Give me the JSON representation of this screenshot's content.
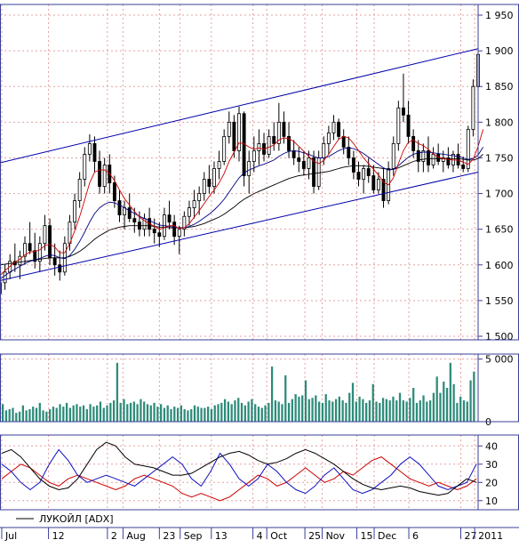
{
  "chart_data": {
    "type": "candlestick",
    "instrument_legend": "ЛУКОЙЛ [ADX]",
    "colors": {
      "background": "#ffffff",
      "grid": "#e4a0a0",
      "frame": "#3a3f9a",
      "candle": "#000000",
      "ma_fast": "#cc0000",
      "ma_mid": "#000080",
      "ma_slow": "#000000",
      "channel": "#0000aa",
      "volume_bar": "#2e8b7a",
      "adx": "#000000",
      "di_plus": "#1010c0",
      "di_minus": "#cc0000"
    },
    "x_axis": {
      "labels": [
        "Jul",
        "12",
        "2",
        "Aug",
        "23",
        "Sep",
        "13",
        "4",
        "Oct",
        "25",
        "Nov",
        "15",
        "Dec",
        "6",
        "27",
        "2011"
      ],
      "label_positions": [
        0.5,
        14,
        31,
        35.5,
        46,
        52,
        61,
        73,
        77,
        88,
        93,
        103,
        108,
        118,
        133,
        137
      ]
    },
    "price_panel": {
      "ylim": [
        1495,
        1965
      ],
      "yticks": [
        1500,
        1550,
        1600,
        1650,
        1700,
        1750,
        1800,
        1850,
        1900,
        1950
      ],
      "ytick_labels": [
        "1 500",
        "1 550",
        "1 600",
        "1 650",
        "1 700",
        "1 750",
        "1 800",
        "1 850",
        "1 900",
        "1 950"
      ],
      "channel_upper": [
        [
          0,
          1743
        ],
        [
          138,
          1903
        ]
      ],
      "channel_lower": [
        [
          0,
          1578
        ],
        [
          138,
          1730
        ]
      ],
      "candles": [
        [
          1560,
          1590,
          1550,
          1575
        ],
        [
          1575,
          1600,
          1565,
          1590
        ],
        [
          1590,
          1615,
          1580,
          1605
        ],
        [
          1605,
          1630,
          1590,
          1600
        ],
        [
          1600,
          1620,
          1580,
          1612
        ],
        [
          1612,
          1640,
          1600,
          1630
        ],
        [
          1630,
          1660,
          1615,
          1620
        ],
        [
          1620,
          1645,
          1595,
          1605
        ],
        [
          1605,
          1640,
          1590,
          1630
        ],
        [
          1630,
          1670,
          1620,
          1655
        ],
        [
          1655,
          1665,
          1600,
          1610
        ],
        [
          1610,
          1630,
          1585,
          1600
        ],
        [
          1600,
          1620,
          1578,
          1590
        ],
        [
          1590,
          1640,
          1585,
          1630
        ],
        [
          1630,
          1670,
          1620,
          1660
        ],
        [
          1660,
          1700,
          1650,
          1690
        ],
        [
          1690,
          1730,
          1680,
          1720
        ],
        [
          1720,
          1765,
          1710,
          1755
        ],
        [
          1755,
          1783,
          1745,
          1770
        ],
        [
          1770,
          1780,
          1730,
          1745
        ],
        [
          1745,
          1760,
          1700,
          1710
        ],
        [
          1710,
          1750,
          1700,
          1740
        ],
        [
          1740,
          1755,
          1700,
          1715
        ],
        [
          1715,
          1725,
          1680,
          1690
        ],
        [
          1690,
          1705,
          1660,
          1670
        ],
        [
          1670,
          1690,
          1650,
          1680
        ],
        [
          1680,
          1700,
          1660,
          1665
        ],
        [
          1665,
          1680,
          1645,
          1660
        ],
        [
          1660,
          1675,
          1640,
          1650
        ],
        [
          1650,
          1672,
          1640,
          1665
        ],
        [
          1665,
          1680,
          1640,
          1650
        ],
        [
          1650,
          1665,
          1630,
          1645
        ],
        [
          1645,
          1660,
          1625,
          1640
        ],
        [
          1640,
          1680,
          1635,
          1670
        ],
        [
          1670,
          1690,
          1650,
          1660
        ],
        [
          1660,
          1670,
          1628,
          1640
        ],
        [
          1640,
          1655,
          1615,
          1650
        ],
        [
          1650,
          1675,
          1640,
          1668
        ],
        [
          1668,
          1690,
          1655,
          1680
        ],
        [
          1680,
          1705,
          1665,
          1690
        ],
        [
          1690,
          1710,
          1670,
          1700
        ],
        [
          1700,
          1730,
          1690,
          1720
        ],
        [
          1720,
          1740,
          1700,
          1710
        ],
        [
          1710,
          1745,
          1700,
          1735
        ],
        [
          1735,
          1760,
          1720,
          1745
        ],
        [
          1745,
          1790,
          1740,
          1780
        ],
        [
          1780,
          1815,
          1770,
          1800
        ],
        [
          1800,
          1810,
          1750,
          1760
        ],
        [
          1760,
          1822,
          1745,
          1812
        ],
        [
          1812,
          1815,
          1710,
          1725
        ],
        [
          1725,
          1760,
          1700,
          1745
        ],
        [
          1745,
          1780,
          1730,
          1760
        ],
        [
          1760,
          1790,
          1740,
          1770
        ],
        [
          1770,
          1785,
          1745,
          1755
        ],
        [
          1755,
          1790,
          1750,
          1780
        ],
        [
          1780,
          1800,
          1760,
          1770
        ],
        [
          1770,
          1827,
          1760,
          1800
        ],
        [
          1800,
          1815,
          1770,
          1780
        ],
        [
          1780,
          1800,
          1750,
          1760
        ],
        [
          1760,
          1775,
          1740,
          1750
        ],
        [
          1750,
          1765,
          1730,
          1745
        ],
        [
          1745,
          1760,
          1725,
          1735
        ],
        [
          1735,
          1760,
          1720,
          1750
        ],
        [
          1750,
          1760,
          1700,
          1710
        ],
        [
          1710,
          1760,
          1705,
          1750
        ],
        [
          1750,
          1780,
          1740,
          1770
        ],
        [
          1770,
          1795,
          1755,
          1785
        ],
        [
          1785,
          1810,
          1775,
          1800
        ],
        [
          1800,
          1805,
          1775,
          1780
        ],
        [
          1780,
          1790,
          1755,
          1765
        ],
        [
          1765,
          1780,
          1740,
          1750
        ],
        [
          1750,
          1760,
          1720,
          1730
        ],
        [
          1730,
          1745,
          1710,
          1720
        ],
        [
          1720,
          1740,
          1700,
          1735
        ],
        [
          1735,
          1750,
          1715,
          1725
        ],
        [
          1725,
          1740,
          1700,
          1705
        ],
        [
          1705,
          1730,
          1700,
          1720
        ],
        [
          1720,
          1735,
          1680,
          1690
        ],
        [
          1690,
          1745,
          1685,
          1735
        ],
        [
          1735,
          1780,
          1725,
          1770
        ],
        [
          1770,
          1830,
          1760,
          1820
        ],
        [
          1820,
          1868,
          1800,
          1810
        ],
        [
          1810,
          1830,
          1770,
          1780
        ],
        [
          1780,
          1790,
          1750,
          1760
        ],
        [
          1760,
          1775,
          1730,
          1745
        ],
        [
          1745,
          1770,
          1730,
          1760
        ],
        [
          1760,
          1780,
          1730,
          1740
        ],
        [
          1740,
          1765,
          1735,
          1755
        ],
        [
          1755,
          1770,
          1740,
          1745
        ],
        [
          1745,
          1760,
          1730,
          1750
        ],
        [
          1750,
          1765,
          1735,
          1740
        ],
        [
          1740,
          1760,
          1730,
          1755
        ],
        [
          1755,
          1770,
          1735,
          1740
        ],
        [
          1740,
          1752,
          1730,
          1735
        ],
        [
          1735,
          1795,
          1730,
          1790
        ],
        [
          1790,
          1860,
          1780,
          1850
        ],
        [
          1850,
          1915,
          1840,
          1895
        ]
      ],
      "ma_fast": [
        1585,
        1592,
        1598,
        1604,
        1608,
        1614,
        1618,
        1619,
        1621,
        1627,
        1629,
        1625,
        1617,
        1617,
        1630,
        1648,
        1668,
        1691,
        1715,
        1730,
        1733,
        1733,
        1728,
        1718,
        1705,
        1693,
        1684,
        1675,
        1667,
        1662,
        1658,
        1654,
        1650,
        1652,
        1655,
        1655,
        1651,
        1652,
        1658,
        1667,
        1676,
        1686,
        1696,
        1705,
        1715,
        1728,
        1745,
        1758,
        1771,
        1770,
        1765,
        1762,
        1764,
        1762,
        1765,
        1768,
        1775,
        1778,
        1777,
        1773,
        1766,
        1759,
        1752,
        1745,
        1742,
        1746,
        1755,
        1766,
        1776,
        1780,
        1778,
        1770,
        1760,
        1750,
        1742,
        1734,
        1726,
        1716,
        1712,
        1722,
        1742,
        1760,
        1772,
        1775,
        1770,
        1767,
        1762,
        1755,
        1751,
        1749,
        1748,
        1747,
        1747,
        1744,
        1741,
        1748,
        1766,
        1790
      ],
      "ma_mid": [
        1580,
        1585,
        1590,
        1594,
        1598,
        1602,
        1605,
        1607,
        1609,
        1612,
        1614,
        1613,
        1610,
        1609,
        1613,
        1622,
        1633,
        1646,
        1660,
        1672,
        1680,
        1685,
        1688,
        1687,
        1684,
        1680,
        1676,
        1672,
        1668,
        1665,
        1662,
        1659,
        1656,
        1655,
        1654,
        1653,
        1652,
        1652,
        1654,
        1657,
        1661,
        1666,
        1671,
        1677,
        1684,
        1692,
        1702,
        1712,
        1722,
        1729,
        1733,
        1736,
        1739,
        1741,
        1744,
        1747,
        1752,
        1756,
        1759,
        1760,
        1759,
        1757,
        1755,
        1752,
        1750,
        1750,
        1752,
        1756,
        1760,
        1763,
        1764,
        1763,
        1760,
        1756,
        1751,
        1746,
        1741,
        1736,
        1733,
        1734,
        1739,
        1745,
        1751,
        1755,
        1757,
        1758,
        1758,
        1757,
        1756,
        1755,
        1754,
        1753,
        1752,
        1750,
        1748,
        1749,
        1754,
        1765
      ],
      "ma_slow": [
        1600,
        1601,
        1602,
        1603,
        1604,
        1605,
        1606,
        1607,
        1608,
        1609,
        1610,
        1610,
        1610,
        1610,
        1612,
        1615,
        1619,
        1624,
        1630,
        1636,
        1641,
        1645,
        1649,
        1651,
        1653,
        1654,
        1655,
        1655,
        1655,
        1655,
        1655,
        1654,
        1653,
        1653,
        1652,
        1652,
        1652,
        1652,
        1653,
        1654,
        1656,
        1658,
        1661,
        1664,
        1667,
        1671,
        1676,
        1681,
        1687,
        1692,
        1696,
        1700,
        1703,
        1706,
        1709,
        1712,
        1715,
        1718,
        1721,
        1723,
        1725,
        1726,
        1727,
        1728,
        1729,
        1730,
        1731,
        1733,
        1735,
        1737,
        1738,
        1739,
        1739,
        1739,
        1738,
        1737,
        1736,
        1735,
        1734,
        1734,
        1736,
        1739,
        1742,
        1745,
        1747,
        1748,
        1749,
        1749,
        1749,
        1749,
        1749,
        1749,
        1749,
        1748,
        1747,
        1747,
        1749,
        1755
      ]
    },
    "volume_panel": {
      "ylim": [
        0,
        5400
      ],
      "yticks": [
        0,
        5000
      ],
      "ytick_labels": [
        "0",
        "5 000"
      ],
      "values": [
        1400,
        900,
        1000,
        1100,
        700,
        800,
        1300,
        900,
        1000,
        1200,
        1100,
        1500,
        900,
        800,
        1000,
        1200,
        1100,
        1400,
        1200,
        1500,
        1100,
        1300,
        1400,
        1200,
        1300,
        1000,
        1400,
        1200,
        1300,
        1600,
        1100,
        1300,
        1500,
        1700,
        4700,
        1500,
        1800,
        1400,
        1500,
        1600,
        1400,
        1800,
        1600,
        1400,
        1300,
        1500,
        1200,
        1400,
        1100,
        1300,
        1000,
        1200,
        1100,
        1300,
        1000,
        900,
        1000,
        1300,
        1200,
        1100,
        1100,
        1200,
        1000,
        1300,
        1400,
        1500,
        1800,
        1600,
        1400,
        1700,
        1900,
        1500,
        1300,
        1600,
        1800,
        1400,
        1200,
        1100,
        1300,
        1500,
        4400,
        1700,
        1600,
        1400,
        3700,
        1500,
        1800,
        2200,
        2000,
        2100,
        3300,
        1800,
        1900,
        2100,
        1600,
        1500,
        2200,
        1700,
        1600,
        1800,
        2000,
        1700,
        1500,
        2300,
        3100,
        1600,
        2000,
        1800,
        1500,
        1700,
        3000,
        1600,
        1500,
        1900,
        1800,
        1700,
        2000,
        1700,
        2300,
        1700,
        1600,
        1900,
        2700,
        1500,
        1700,
        2100,
        1600,
        1700,
        2300,
        3600,
        2300,
        3200,
        2700,
        4700,
        3000,
        1500,
        2000,
        1700,
        1600,
        3300,
        4000
      ]
    },
    "adx_panel": {
      "ylim": [
        5,
        46
      ],
      "yticks": [
        10,
        20,
        30,
        40
      ],
      "ytick_labels": [
        "10",
        "20",
        "30",
        "40"
      ],
      "adx": [
        36,
        38,
        34,
        28,
        22,
        18,
        16,
        17,
        22,
        30,
        38,
        42,
        40,
        34,
        30,
        29,
        28,
        26,
        24,
        24,
        25,
        28,
        31,
        34,
        36,
        37,
        35,
        32,
        30,
        31,
        33,
        36,
        38,
        36,
        33,
        30,
        26,
        22,
        19,
        17,
        16,
        17,
        18,
        17,
        15,
        14,
        13,
        14,
        18,
        22,
        20
      ],
      "di_plus": [
        30,
        26,
        20,
        16,
        20,
        30,
        38,
        32,
        24,
        20,
        22,
        24,
        22,
        20,
        18,
        22,
        26,
        30,
        34,
        30,
        22,
        18,
        26,
        36,
        30,
        22,
        18,
        22,
        30,
        26,
        20,
        16,
        14,
        18,
        24,
        28,
        22,
        16,
        14,
        16,
        20,
        24,
        30,
        34,
        30,
        24,
        18,
        16,
        18,
        20,
        30
      ],
      "di_minus": [
        22,
        26,
        30,
        28,
        24,
        20,
        18,
        22,
        24,
        22,
        20,
        18,
        16,
        18,
        22,
        24,
        22,
        20,
        18,
        14,
        12,
        14,
        12,
        10,
        12,
        16,
        20,
        24,
        22,
        18,
        20,
        24,
        28,
        24,
        20,
        22,
        26,
        24,
        28,
        32,
        34,
        30,
        26,
        22,
        20,
        18,
        20,
        18,
        16,
        18,
        22
      ]
    }
  }
}
